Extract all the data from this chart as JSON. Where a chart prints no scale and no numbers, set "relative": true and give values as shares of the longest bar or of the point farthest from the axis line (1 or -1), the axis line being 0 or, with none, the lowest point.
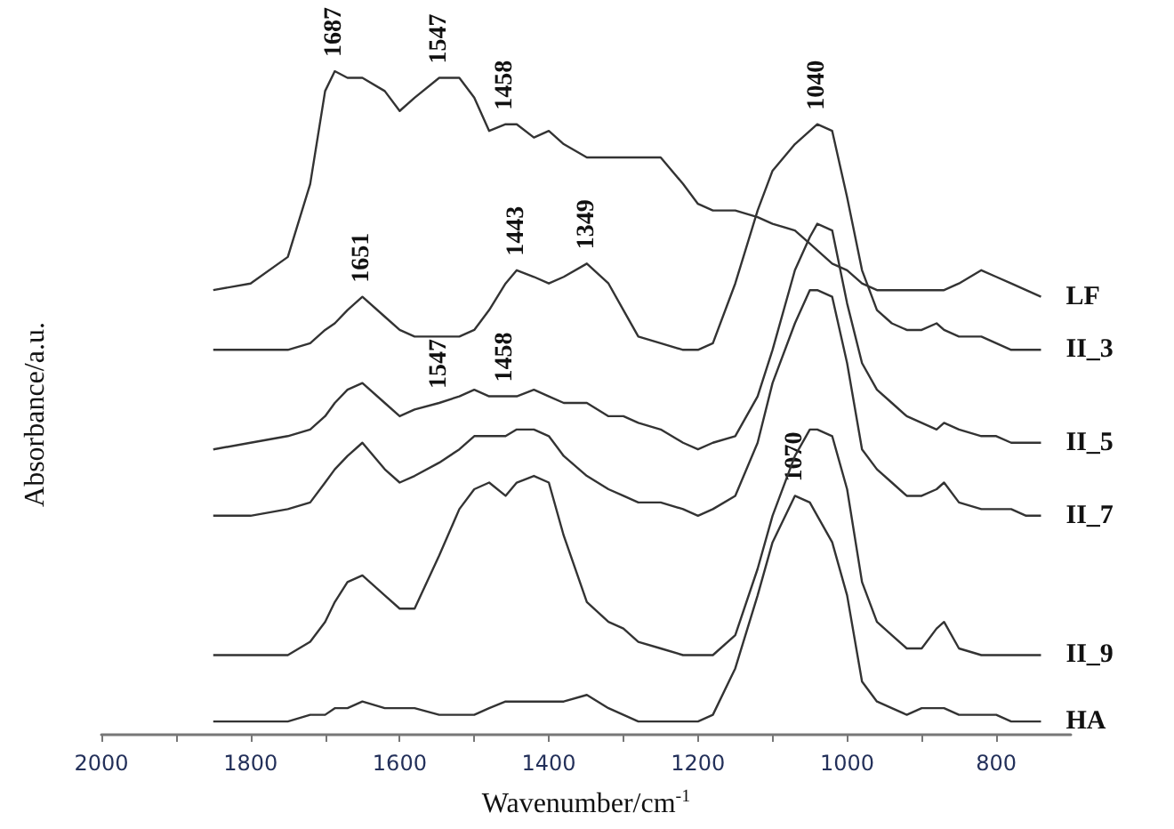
{
  "chart_data": {
    "type": "line",
    "relative": true,
    "marker": "none",
    "xlabel": "Wavenumber/cm$^{-1}$",
    "ylabel": "Absorbance/a.u.",
    "xlim": [
      2000,
      700
    ],
    "xticks": [
      2000,
      {
        "value": 1900,
        "label": null
      },
      1800,
      {
        "value": 1700,
        "label": null
      },
      1600,
      {
        "value": 1500,
        "label": null
      },
      1400,
      {
        "value": 1300,
        "label": null
      },
      1200,
      {
        "value": 1100,
        "label": null
      },
      1000,
      {
        "value": 900,
        "label": null
      },
      800
    ],
    "x": [
      1850,
      1800,
      1750,
      1720,
      1700,
      1687,
      1670,
      1650,
      1620,
      1600,
      1580,
      1547,
      1520,
      1500,
      1480,
      1458,
      1443,
      1420,
      1400,
      1380,
      1349,
      1320,
      1300,
      1280,
      1250,
      1220,
      1200,
      1180,
      1150,
      1120,
      1100,
      1070,
      1050,
      1040,
      1020,
      1000,
      980,
      960,
      940,
      920,
      900,
      880,
      870,
      850,
      820,
      800,
      780,
      760,
      740
    ],
    "series": [
      {
        "name": "LF",
        "color": "#333333",
        "values": [
          0.67,
          0.68,
          0.72,
          0.83,
          0.97,
          1,
          0.99,
          0.99,
          0.97,
          0.94,
          0.96,
          0.99,
          0.99,
          0.96,
          0.91,
          0.92,
          0.92,
          0.9,
          0.91,
          0.89,
          0.87,
          0.87,
          0.87,
          0.87,
          0.87,
          0.83,
          0.8,
          0.79,
          0.79,
          0.78,
          0.77,
          0.76,
          0.74,
          0.73,
          0.71,
          0.7,
          0.68,
          0.67,
          0.67,
          0.67,
          0.67,
          0.67,
          0.67,
          0.68,
          0.7,
          0.69,
          0.68,
          0.67,
          0.66
        ]
      },
      {
        "name": "II_3",
        "color": "#333333",
        "values": [
          0.58,
          0.58,
          0.58,
          0.59,
          0.61,
          0.62,
          0.64,
          0.66,
          0.63,
          0.61,
          0.6,
          0.6,
          0.6,
          0.61,
          0.64,
          0.68,
          0.7,
          0.69,
          0.68,
          0.69,
          0.71,
          0.68,
          0.64,
          0.6,
          0.59,
          0.58,
          0.58,
          0.59,
          0.68,
          0.79,
          0.85,
          0.89,
          0.91,
          0.92,
          0.91,
          0.81,
          0.7,
          0.64,
          0.62,
          0.61,
          0.61,
          0.62,
          0.61,
          0.6,
          0.6,
          0.59,
          0.58,
          0.58,
          0.58
        ]
      },
      {
        "name": "II_5",
        "color": "#333333",
        "values": [
          0.43,
          0.44,
          0.45,
          0.46,
          0.48,
          0.5,
          0.52,
          0.53,
          0.5,
          0.48,
          0.49,
          0.5,
          0.51,
          0.52,
          0.51,
          0.51,
          0.51,
          0.52,
          0.51,
          0.5,
          0.5,
          0.48,
          0.48,
          0.47,
          0.46,
          0.44,
          0.43,
          0.44,
          0.45,
          0.51,
          0.58,
          0.7,
          0.75,
          0.77,
          0.76,
          0.65,
          0.56,
          0.52,
          0.5,
          0.48,
          0.47,
          0.46,
          0.47,
          0.46,
          0.45,
          0.45,
          0.44,
          0.44,
          0.44
        ]
      },
      {
        "name": "II_7",
        "color": "#333333",
        "values": [
          0.33,
          0.33,
          0.34,
          0.35,
          0.38,
          0.4,
          0.42,
          0.44,
          0.4,
          0.38,
          0.39,
          0.41,
          0.43,
          0.45,
          0.45,
          0.45,
          0.46,
          0.46,
          0.45,
          0.42,
          0.39,
          0.37,
          0.36,
          0.35,
          0.35,
          0.34,
          0.33,
          0.34,
          0.36,
          0.44,
          0.53,
          0.62,
          0.67,
          0.67,
          0.66,
          0.56,
          0.43,
          0.4,
          0.38,
          0.36,
          0.36,
          0.37,
          0.38,
          0.35,
          0.34,
          0.34,
          0.34,
          0.33,
          0.33
        ]
      },
      {
        "name": "II_9",
        "color": "#333333",
        "values": [
          0.12,
          0.12,
          0.12,
          0.14,
          0.17,
          0.2,
          0.23,
          0.24,
          0.21,
          0.19,
          0.19,
          0.27,
          0.34,
          0.37,
          0.38,
          0.36,
          0.38,
          0.39,
          0.38,
          0.3,
          0.2,
          0.17,
          0.16,
          0.14,
          0.13,
          0.12,
          0.12,
          0.12,
          0.15,
          0.25,
          0.33,
          0.42,
          0.46,
          0.46,
          0.45,
          0.37,
          0.23,
          0.17,
          0.15,
          0.13,
          0.13,
          0.16,
          0.17,
          0.13,
          0.12,
          0.12,
          0.12,
          0.12,
          0.12
        ]
      },
      {
        "name": "HA",
        "color": "#333333",
        "values": [
          0.02,
          0.02,
          0.02,
          0.03,
          0.03,
          0.04,
          0.04,
          0.05,
          0.04,
          0.04,
          0.04,
          0.03,
          0.03,
          0.03,
          0.04,
          0.05,
          0.05,
          0.05,
          0.05,
          0.05,
          0.06,
          0.04,
          0.03,
          0.02,
          0.02,
          0.02,
          0.02,
          0.03,
          0.1,
          0.21,
          0.29,
          0.36,
          0.35,
          0.33,
          0.29,
          0.21,
          0.08,
          0.05,
          0.04,
          0.03,
          0.04,
          0.04,
          0.04,
          0.03,
          0.03,
          0.03,
          0.02,
          0.02,
          0.02
        ]
      }
    ],
    "annotations": [
      {
        "text": "1687",
        "x": 1687,
        "y": 1
      },
      {
        "text": "1547",
        "x": 1547,
        "y": 0.99
      },
      {
        "text": "1458",
        "x": 1458,
        "y": 0.92
      },
      {
        "text": "1040",
        "x": 1040,
        "y": 0.92
      },
      {
        "text": "1651",
        "x": 1650,
        "y": 0.66
      },
      {
        "text": "1443",
        "x": 1443,
        "y": 0.7
      },
      {
        "text": "1349",
        "x": 1349,
        "y": 0.71
      },
      {
        "text": "1547",
        "x": 1547,
        "y": 0.5
      },
      {
        "text": "1458",
        "x": 1458,
        "y": 0.51
      },
      {
        "text": "1070",
        "x": 1070,
        "y": 0.36
      }
    ]
  }
}
